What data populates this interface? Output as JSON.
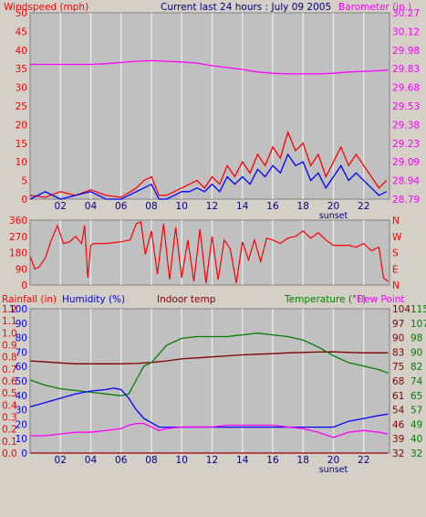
{
  "header": {
    "left_title": "Windspeed (mph)",
    "center_title": "Current last 24 hours : July 09 2005",
    "right_title": "Barometer (in.)"
  },
  "colors": {
    "background": "#d4d0c8",
    "plot_background": "#c0c0c0",
    "grid": "#e8e8e8",
    "red": "#ff0000",
    "blue": "#0000ff",
    "magenta": "#ff00ff",
    "green": "#008000",
    "maroon": "#800000",
    "dark_red": "#a00000",
    "navy_text": "#000080"
  },
  "chart_data": [
    {
      "type": "line",
      "name": "wind-barometer",
      "x_ticks": [
        "02",
        "04",
        "06",
        "08",
        "10",
        "12",
        "14",
        "16",
        "18",
        "20",
        "22"
      ],
      "sunset_label": "sunset",
      "sunset_hour": 20,
      "xlim": [
        0,
        23.7
      ],
      "left_axis": {
        "label": "Windspeed (mph)",
        "ylim": [
          0,
          50
        ],
        "ticks": [
          "0",
          "5",
          "10",
          "15",
          "20",
          "25",
          "30",
          "35",
          "40",
          "45",
          "50"
        ]
      },
      "right_axis": {
        "label": "Barometer (in.)",
        "ylim": [
          28.79,
          30.27
        ],
        "ticks": [
          "28.79",
          "28.94",
          "29.09",
          "29.23",
          "29.38",
          "29.53",
          "29.68",
          "29.83",
          "29.98",
          "30.12",
          "30.27"
        ]
      },
      "series": [
        {
          "color": "#ff00ff",
          "axis": "right",
          "x": [
            0,
            1,
            2,
            3,
            4,
            5,
            6,
            7,
            8,
            9,
            10,
            11,
            12,
            13,
            14,
            15,
            16,
            17,
            18,
            19,
            20,
            21,
            22,
            23,
            23.6
          ],
          "y": [
            29.86,
            29.86,
            29.86,
            29.86,
            29.86,
            29.865,
            29.875,
            29.885,
            29.89,
            29.885,
            29.88,
            29.87,
            29.85,
            29.835,
            29.82,
            29.8,
            29.79,
            29.785,
            29.785,
            29.785,
            29.79,
            29.8,
            29.805,
            29.81,
            29.815
          ]
        },
        {
          "color": "#ff0000",
          "axis": "left",
          "x": [
            0,
            1,
            2,
            3,
            4,
            5,
            6,
            7,
            7.5,
            8,
            8.5,
            9,
            9.5,
            10,
            10.5,
            11,
            11.5,
            12,
            12.5,
            13,
            13.5,
            14,
            14.5,
            15,
            15.5,
            16,
            16.5,
            17,
            17.5,
            18,
            18.5,
            19,
            19.5,
            20,
            20.5,
            21,
            21.5,
            22,
            22.5,
            23,
            23.5
          ],
          "y": [
            1,
            0.5,
            2,
            1,
            2.5,
            1,
            0.5,
            3,
            5,
            6,
            1,
            1,
            2,
            3,
            4,
            5,
            3,
            6,
            4,
            9,
            6,
            10,
            7,
            12,
            9,
            14,
            11,
            18,
            13,
            15,
            9,
            12,
            6,
            10,
            14,
            9,
            12,
            9,
            6,
            3,
            5
          ]
        },
        {
          "color": "#0000ff",
          "axis": "left",
          "x": [
            0,
            1,
            2,
            3,
            4,
            5,
            6,
            7,
            7.5,
            8,
            8.5,
            9,
            9.5,
            10,
            10.5,
            11,
            11.5,
            12,
            12.5,
            13,
            13.5,
            14,
            14.5,
            15,
            15.5,
            16,
            16.5,
            17,
            17.5,
            18,
            18.5,
            19,
            19.5,
            20,
            20.5,
            21,
            21.5,
            22,
            22.5,
            23,
            23.5
          ],
          "y": [
            0,
            2,
            0,
            1,
            2,
            0,
            0,
            2,
            3,
            4,
            0,
            0,
            1,
            2,
            2,
            3,
            2,
            4,
            2,
            6,
            4,
            6,
            4,
            8,
            6,
            9,
            7,
            12,
            9,
            10,
            5,
            7,
            3,
            6,
            9,
            5,
            7,
            5,
            3,
            1,
            2
          ]
        }
      ]
    },
    {
      "type": "line",
      "name": "wind-direction",
      "x_ticks": [],
      "xlim": [
        0,
        23.7
      ],
      "left_axis": {
        "ylim": [
          0,
          360
        ],
        "ticks": [
          "0",
          "90",
          "180",
          "270",
          "360"
        ]
      },
      "right_axis": {
        "ylim": [
          0,
          360
        ],
        "ticks": [
          "N",
          "E",
          "S",
          "W",
          "N"
        ]
      },
      "series": [
        {
          "color": "#ff0000",
          "axis": "left",
          "x": [
            0,
            0.3,
            0.6,
            1.0,
            1.4,
            1.8,
            2.2,
            2.6,
            3.0,
            3.4,
            3.6,
            3.8,
            4.0,
            4.2,
            5.0,
            6.0,
            6.6,
            7.0,
            7.3,
            7.6,
            8.0,
            8.4,
            8.8,
            9.2,
            9.6,
            10.0,
            10.4,
            10.8,
            11.2,
            11.6,
            12.0,
            12.4,
            12.8,
            13.2,
            13.6,
            14.0,
            14.4,
            14.8,
            15.2,
            15.6,
            16.0,
            16.5,
            17.0,
            17.5,
            18.0,
            18.5,
            19.0,
            19.5,
            20.0,
            20.5,
            21.0,
            21.5,
            22.0,
            22.5,
            23.0,
            23.3,
            23.6
          ],
          "y": [
            160,
            90,
            100,
            150,
            250,
            330,
            230,
            240,
            270,
            230,
            330,
            40,
            220,
            230,
            230,
            240,
            250,
            340,
            350,
            170,
            300,
            60,
            340,
            30,
            320,
            40,
            250,
            20,
            310,
            10,
            270,
            30,
            250,
            200,
            10,
            240,
            140,
            250,
            130,
            260,
            250,
            230,
            260,
            270,
            300,
            260,
            290,
            250,
            220,
            220,
            220,
            210,
            230,
            190,
            210,
            40,
            20
          ]
        }
      ]
    },
    {
      "type": "line",
      "name": "rain-humidity-temperature",
      "x_ticks": [
        "02",
        "04",
        "06",
        "08",
        "10",
        "12",
        "14",
        "16",
        "18",
        "20",
        "22"
      ],
      "sunset_label": "sunset",
      "sunset_hour": 20,
      "xlim": [
        0,
        23.7
      ],
      "header_labels": {
        "rainfall": "Rainfall (in)",
        "humidity": "Humidity (%)",
        "indoor": "Indoor temp",
        "temperature": "Temperature (°F)",
        "dewpoint": "Dew Point"
      },
      "rain_axis": {
        "ylim": [
          0,
          1.2
        ],
        "ticks": [
          "0.0",
          "0.1",
          "0.2",
          "0.3",
          "0.4",
          "0.5",
          "0.6",
          "0.7",
          "0.8",
          "0.9",
          "1.0",
          "1.1",
          "1.2"
        ]
      },
      "humidity_axis": {
        "ylim": [
          0,
          100
        ],
        "ticks": [
          "0",
          "10",
          "20",
          "30",
          "40",
          "50",
          "60",
          "70",
          "80",
          "90",
          "100"
        ]
      },
      "indoor_axis": {
        "ylim": [
          32,
          104
        ],
        "ticks": [
          "32",
          "39",
          "46",
          "54",
          "61",
          "68",
          "75",
          "83",
          "90",
          "97",
          "104"
        ]
      },
      "temp_axis": {
        "ylim": [
          32,
          115
        ],
        "ticks": [
          "32",
          "40",
          "49",
          "57",
          "65",
          "74",
          "82",
          "90",
          "98",
          "107",
          "115"
        ]
      },
      "series": [
        {
          "color": "#800000",
          "axis": "indoor",
          "x": [
            0,
            1,
            2,
            3,
            4,
            5,
            6,
            7,
            8,
            9,
            10,
            11,
            12,
            13,
            14,
            15,
            16,
            17,
            18,
            19,
            20,
            21,
            22,
            23,
            23.6
          ],
          "y": [
            78,
            77.5,
            77,
            76.5,
            76.5,
            76.5,
            76.5,
            76.7,
            77.2,
            78,
            79,
            79.5,
            80,
            80.5,
            81,
            81.3,
            81.6,
            82,
            82.2,
            82.4,
            82.5,
            82.2,
            82,
            82,
            82
          ]
        },
        {
          "color": "#008000",
          "axis": "temp",
          "x": [
            0,
            1,
            2,
            3,
            4,
            5,
            6,
            6.5,
            7,
            7.5,
            8,
            8.5,
            9,
            10,
            11,
            12,
            13,
            14,
            15,
            16,
            17,
            18,
            19,
            20,
            21,
            22,
            23,
            23.6
          ],
          "y": [
            74,
            71,
            69,
            68,
            67,
            66,
            65,
            66,
            74,
            82,
            84,
            89,
            94,
            98,
            99,
            99,
            99,
            100,
            101,
            100,
            99,
            97,
            93,
            88,
            84,
            82,
            80,
            78
          ]
        },
        {
          "color": "#0000ff",
          "axis": "humidity",
          "x": [
            0,
            1,
            2,
            3,
            4,
            5,
            5.5,
            6,
            6.5,
            7,
            7.5,
            8,
            8.5,
            9,
            10,
            12,
            14,
            16,
            18,
            19,
            20,
            21,
            22,
            23,
            23.6
          ],
          "y": [
            32,
            35,
            38,
            41,
            43,
            44,
            45,
            44,
            38,
            30,
            24,
            21,
            18,
            18,
            18,
            18,
            18,
            18,
            18,
            18,
            18,
            22,
            24,
            26,
            27
          ]
        },
        {
          "color": "#ff00ff",
          "axis": "temp",
          "x": [
            0,
            1,
            2,
            3,
            4,
            5,
            6,
            6.5,
            7,
            7.5,
            8,
            8.5,
            9,
            10,
            11,
            12,
            13,
            14,
            15,
            16,
            17,
            18,
            19,
            20,
            21,
            22,
            23,
            23.6
          ],
          "y": [
            42,
            42,
            43,
            44,
            44,
            45,
            46,
            48,
            49,
            49,
            47,
            45,
            46,
            47,
            47,
            47,
            48,
            48,
            48,
            48,
            47,
            46,
            44,
            41,
            44,
            45,
            44,
            43
          ]
        },
        {
          "color": "#a00000",
          "axis": "rain",
          "x": [
            0,
            23.6
          ],
          "y": [
            0.0,
            0.0
          ]
        }
      ]
    }
  ]
}
